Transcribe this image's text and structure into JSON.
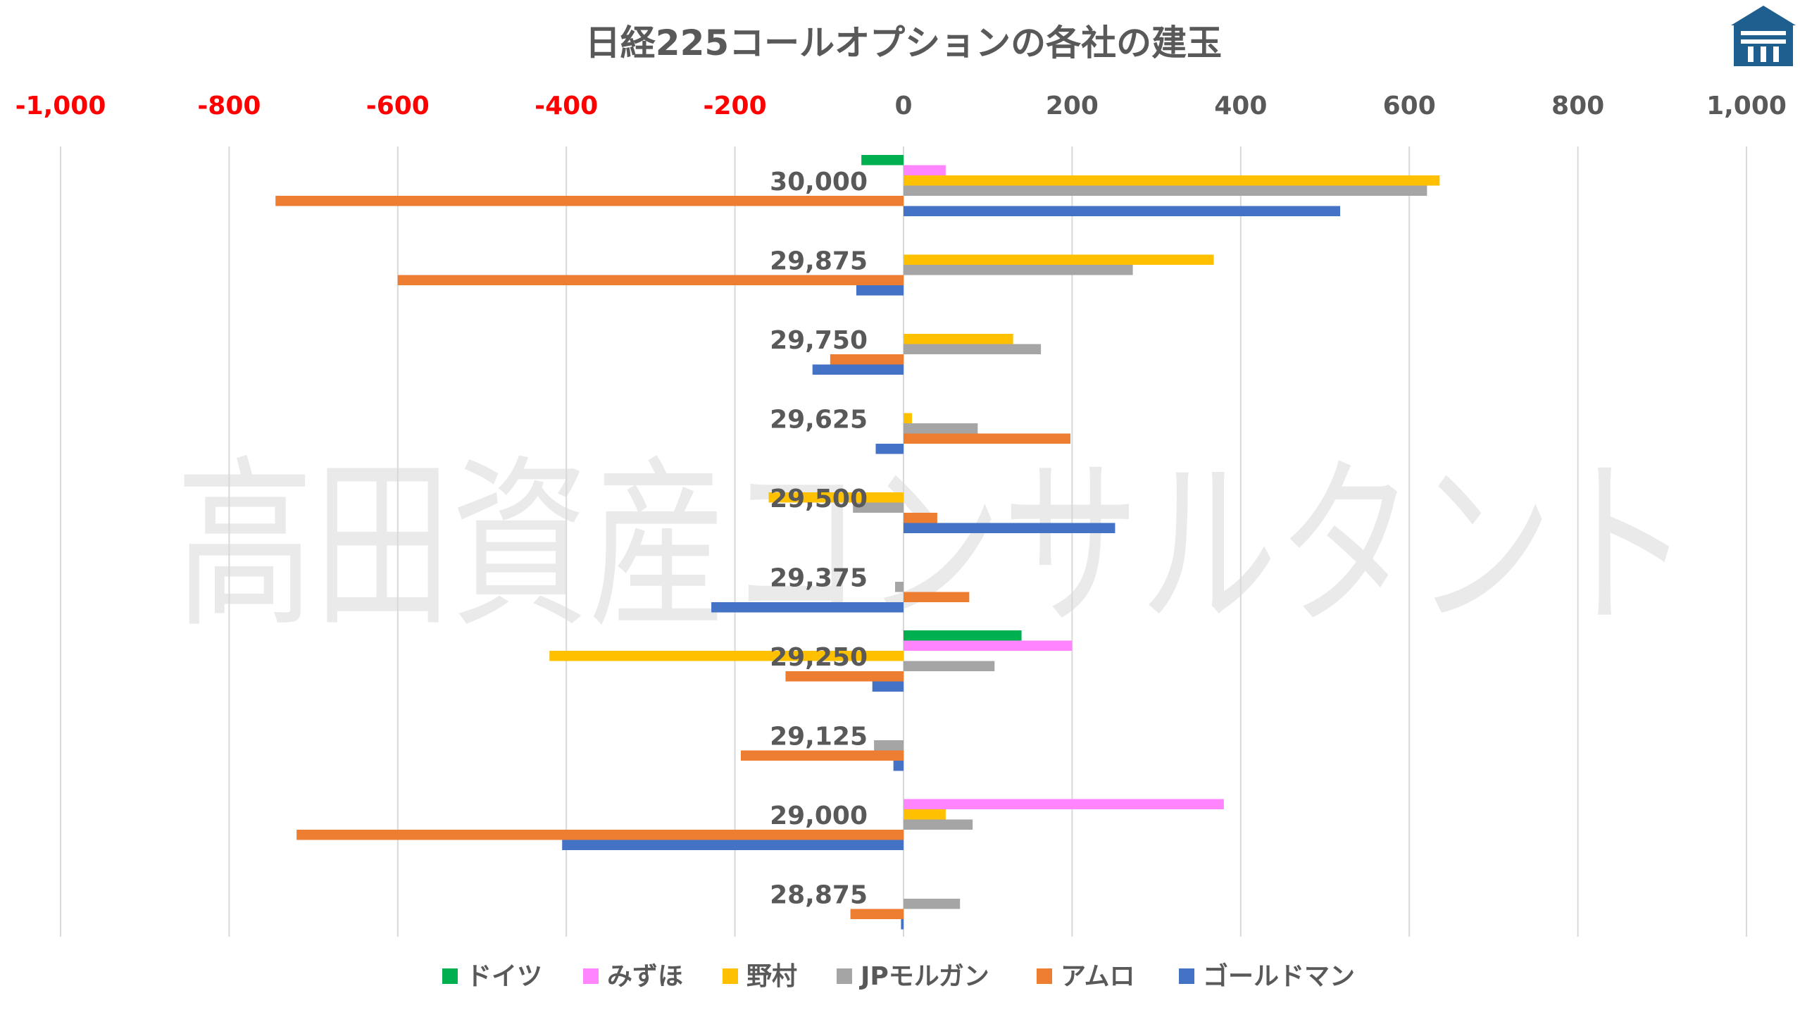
{
  "chart_data": {
    "type": "bar",
    "orientation": "horizontal",
    "title": "日経225コールオプションの各社の建玉",
    "watermark": "高田資産コンサルタント",
    "xlim": [
      -1000,
      1000
    ],
    "x_ticks": [
      -1000,
      -800,
      -600,
      -400,
      -200,
      0,
      200,
      400,
      600,
      800,
      1000
    ],
    "x_tick_labels": [
      "-1,000",
      "-800",
      "-600",
      "-400",
      "-200",
      "0",
      "200",
      "400",
      "600",
      "800",
      "1,000"
    ],
    "negative_tick_color": "#ff0000",
    "positive_tick_color": "#595959",
    "grid": "vertical",
    "legend_position": "bottom",
    "categories": [
      "30,000",
      "29,875",
      "29,750",
      "29,625",
      "29,500",
      "29,375",
      "29,250",
      "29,125",
      "29,000",
      "28,875"
    ],
    "series": [
      {
        "name": "ドイツ",
        "color": "#00b050",
        "values": [
          -50,
          0,
          0,
          0,
          0,
          0,
          140,
          0,
          0,
          0
        ]
      },
      {
        "name": "みずほ",
        "color": "#ff85ff",
        "values": [
          50,
          0,
          0,
          0,
          0,
          0,
          200,
          0,
          380,
          0
        ]
      },
      {
        "name": "野村",
        "color": "#ffc000",
        "values": [
          636,
          368,
          130,
          10,
          -160,
          0,
          -420,
          0,
          50,
          0
        ]
      },
      {
        "name": "JPモルガン",
        "color": "#a5a5a5",
        "values": [
          621,
          272,
          163,
          88,
          -60,
          -10,
          108,
          -35,
          82,
          67
        ]
      },
      {
        "name": "アムロ",
        "color": "#ed7d31",
        "values": [
          -745,
          -600,
          -87,
          198,
          40,
          78,
          -140,
          -193,
          -720,
          -63
        ]
      },
      {
        "name": "ゴールドマン",
        "color": "#4472c4",
        "values": [
          518,
          -56,
          -108,
          -33,
          251,
          -228,
          -37,
          -12,
          -405,
          -3
        ]
      }
    ]
  },
  "logo": {
    "name": "brand-logo",
    "color": "#1f5f8f"
  }
}
